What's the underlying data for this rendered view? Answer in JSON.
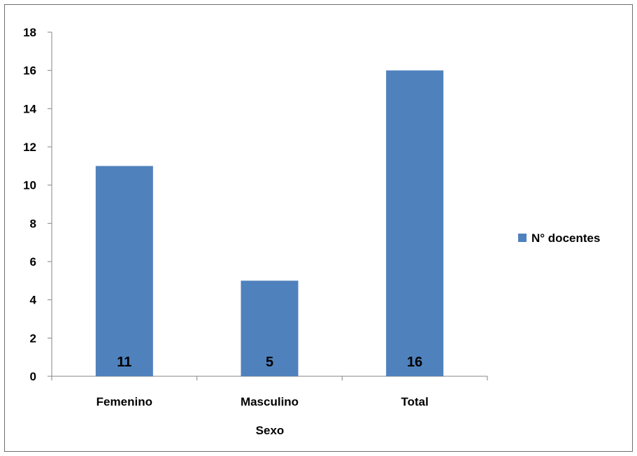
{
  "chart_data": {
    "type": "bar",
    "categories": [
      "Femenino",
      "Masculino",
      "Total"
    ],
    "series": [
      {
        "name": "N° docentes",
        "values": [
          11,
          5,
          16
        ],
        "color": "#4f81bd"
      }
    ],
    "xlabel": "Sexo",
    "ylabel": "",
    "ylim": [
      0,
      18
    ],
    "yticks": [
      0,
      2,
      4,
      6,
      8,
      10,
      12,
      14,
      16,
      18
    ],
    "data_labels": [
      "11",
      "5",
      "16"
    ],
    "legend_position": "right",
    "grid": false
  }
}
